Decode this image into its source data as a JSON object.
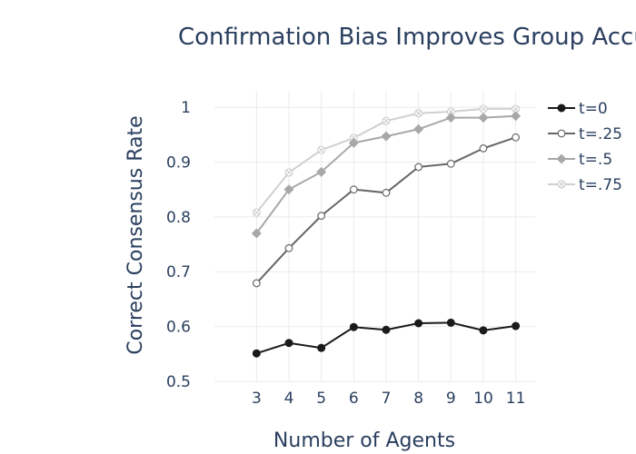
{
  "chart_data": {
    "type": "line",
    "title": "Confirmation Bias Improves Group Accuracy",
    "xlabel": "Number of Agents",
    "ylabel": "Correct Consensus Rate",
    "x": [
      3,
      4,
      5,
      6,
      7,
      8,
      9,
      10,
      11
    ],
    "xlim": [
      1.7,
      11.6
    ],
    "ylim": [
      0.5,
      1.03
    ],
    "yticks": [
      0.5,
      0.6,
      0.7,
      0.8,
      0.9,
      1
    ],
    "ytick_labels": [
      "0.5",
      "0.6",
      "0.7",
      "0.8",
      "0.9",
      "1"
    ],
    "xtick_labels": [
      "3",
      "4",
      "5",
      "6",
      "7",
      "8",
      "9",
      "10",
      "11"
    ],
    "grid": true,
    "legend_position": "right",
    "series": [
      {
        "name": "t=0",
        "color": "#1a1a1a",
        "marker": "circle",
        "values": [
          0.551,
          0.57,
          0.561,
          0.599,
          0.594,
          0.606,
          0.607,
          0.593,
          0.601
        ]
      },
      {
        "name": "t=.25",
        "color": "#666666",
        "marker": "circle-open",
        "values": [
          0.679,
          0.743,
          0.802,
          0.85,
          0.844,
          0.891,
          0.897,
          0.925,
          0.945
        ]
      },
      {
        "name": "t=.5",
        "color": "#a8a8a8",
        "marker": "diamond",
        "values": [
          0.77,
          0.85,
          0.882,
          0.935,
          0.947,
          0.96,
          0.981,
          0.981,
          0.984
        ]
      },
      {
        "name": "t=.75",
        "color": "#d0d0d0",
        "marker": "x-open",
        "values": [
          0.808,
          0.881,
          0.922,
          0.944,
          0.975,
          0.989,
          0.992,
          0.997,
          0.997
        ]
      }
    ]
  }
}
